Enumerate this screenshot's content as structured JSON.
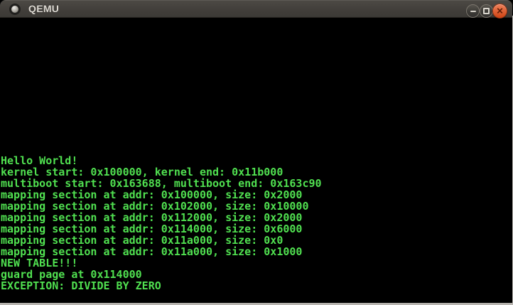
{
  "window": {
    "title": "QEMU",
    "controls": {
      "minimize_label": "minimize",
      "maximize_label": "maximize",
      "close_label": "close",
      "close_glyph": "✕"
    }
  },
  "console": {
    "lines": [
      "Hello World!",
      "kernel start: 0x100000, kernel end: 0x11b000",
      "multiboot start: 0x163688, multiboot end: 0x163c90",
      "mapping section at addr: 0x100000, size: 0x2000",
      "mapping section at addr: 0x102000, size: 0x10000",
      "mapping section at addr: 0x112000, size: 0x2000",
      "mapping section at addr: 0x114000, size: 0x6000",
      "mapping section at addr: 0x11a000, size: 0x0",
      "mapping section at addr: 0x11a000, size: 0x1000",
      "NEW TABLE!!!",
      "guard page at 0x114000",
      "EXCEPTION: DIVIDE BY ZERO"
    ],
    "text_color": "#50e050",
    "background": "#000000"
  },
  "colors": {
    "titlebar_top": "#4d4a45",
    "titlebar_bottom": "#3c3a36",
    "title_text": "#dcd8d1",
    "close_button_top": "#ee8059",
    "close_button_bottom": "#cf4414",
    "desktop_edge": "#b7b4af"
  }
}
